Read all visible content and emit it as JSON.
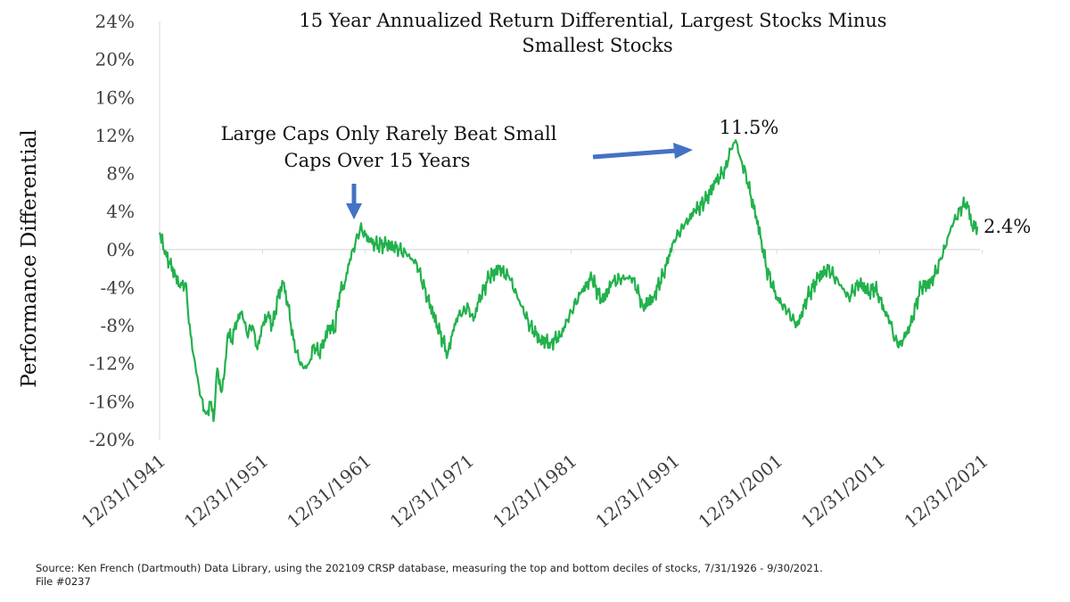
{
  "chart_data": {
    "type": "line",
    "title_line1": "15 Year Annualized Return Differential, Largest Stocks Minus",
    "title_line2": "Smallest Stocks",
    "ylabel": "Performance Differential",
    "xlabel": "",
    "ylim": [
      -20,
      24
    ],
    "yticks": [
      24,
      20,
      16,
      12,
      8,
      4,
      0,
      -4,
      -8,
      -12,
      -16,
      -20
    ],
    "ytick_labels": [
      "24%",
      "20%",
      "16%",
      "12%",
      "8%",
      "4%",
      "0%",
      "-4%",
      "-8%",
      "-12%",
      "-16%",
      "-20%"
    ],
    "xlim": [
      1941.99,
      2021.75
    ],
    "xticks": [
      1941.99,
      1951.99,
      1961.99,
      1971.99,
      1981.99,
      1991.99,
      2001.99,
      2011.99,
      2021.99
    ],
    "xtick_labels": [
      "12/31/1941",
      "12/31/1951",
      "12/31/1961",
      "12/31/1971",
      "12/31/1981",
      "12/31/1991",
      "12/31/2001",
      "12/31/2011",
      "12/31/2021"
    ],
    "grid": false,
    "line_color": "#22b14c",
    "series": [
      {
        "x": [
          1942.0,
          1942.5,
          1943.0,
          1943.5,
          1944.0,
          1944.5,
          1945.0,
          1945.5,
          1946.0,
          1946.5,
          1947.0,
          1947.3,
          1947.6,
          1948.0,
          1948.3,
          1948.6,
          1949.0,
          1949.5,
          1950.0,
          1950.5,
          1951.0,
          1951.5,
          1952.0,
          1952.5,
          1953.0,
          1953.5,
          1954.0,
          1954.5,
          1955.0,
          1955.5,
          1956.0,
          1956.5,
          1957.0,
          1957.5,
          1958.0,
          1958.5,
          1959.0,
          1959.5,
          1960.0,
          1960.5,
          1961.0,
          1961.5,
          1962.0,
          1962.5,
          1963.0,
          1964.0,
          1965.0,
          1966.0,
          1967.0,
          1968.0,
          1969.0,
          1970.0,
          1970.5,
          1971.0,
          1971.5,
          1972.0,
          1972.5,
          1973.0,
          1974.0,
          1975.0,
          1976.0,
          1977.0,
          1978.0,
          1979.0,
          1980.0,
          1981.0,
          1982.0,
          1983.0,
          1984.0,
          1985.0,
          1986.0,
          1987.0,
          1988.0,
          1989.0,
          1990.0,
          1991.0,
          1992.0,
          1993.0,
          1994.0,
          1995.0,
          1996.0,
          1997.0,
          1997.5,
          1998.0,
          1998.5,
          1999.0,
          1999.5,
          2000.0,
          2000.5,
          2001.0,
          2002.0,
          2003.0,
          2004.0,
          2005.0,
          2006.0,
          2007.0,
          2008.0,
          2009.0,
          2010.0,
          2011.0,
          2011.5,
          2012.0,
          2012.5,
          2013.0,
          2013.5,
          2014.0,
          2015.0,
          2016.0,
          2017.0,
          2018.0,
          2019.0,
          2020.0,
          2020.5,
          2021.0,
          2021.5
        ],
        "y": [
          1.8,
          -0.5,
          -1.5,
          -2.8,
          -4.0,
          -3.5,
          -9.0,
          -12.5,
          -15.5,
          -17.3,
          -16.0,
          -17.5,
          -12.5,
          -15.0,
          -13.0,
          -9.0,
          -9.5,
          -7.5,
          -6.5,
          -9.0,
          -8.0,
          -10.5,
          -8.0,
          -7.0,
          -8.0,
          -5.0,
          -3.5,
          -6.0,
          -9.5,
          -11.5,
          -12.5,
          -12.0,
          -10.0,
          -11.0,
          -9.5,
          -8.0,
          -8.5,
          -4.5,
          -3.5,
          -1.0,
          0.5,
          2.3,
          1.5,
          0.8,
          0.5,
          0.5,
          0.2,
          -0.5,
          -1.5,
          -5.0,
          -8.0,
          -11.0,
          -8.5,
          -7.0,
          -6.5,
          -6.0,
          -7.5,
          -5.5,
          -3.0,
          -2.0,
          -3.0,
          -5.5,
          -8.0,
          -9.5,
          -9.8,
          -9.0,
          -6.5,
          -4.5,
          -3.0,
          -5.5,
          -3.5,
          -3.0,
          -3.0,
          -6.0,
          -5.0,
          -2.5,
          1.0,
          2.5,
          4.0,
          5.0,
          7.0,
          8.5,
          10.5,
          11.5,
          9.5,
          8.0,
          5.5,
          3.5,
          1.0,
          -2.0,
          -5.0,
          -6.5,
          -8.0,
          -5.0,
          -3.0,
          -2.0,
          -3.5,
          -5.0,
          -3.5,
          -4.5,
          -4.0,
          -5.0,
          -6.5,
          -7.5,
          -9.5,
          -10.0,
          -8.0,
          -4.0,
          -3.5,
          -1.0,
          2.5,
          4.5,
          5.0,
          2.5,
          2.4
        ]
      }
    ],
    "annotations": {
      "large_caps_line1": "Large Caps Only Rarely Beat Small",
      "large_caps_line2": "Caps Over 15 Years",
      "peak_label": "11.5%",
      "end_label": "2.4%"
    },
    "arrow_color": "#4472c4"
  },
  "source_line1": "Source: Ken French (Dartmouth) Data Library, using the 202109 CRSP database, measuring the top and bottom deciles of stocks, 7/31/1926 - 9/30/2021.",
  "source_line2": "File #0237"
}
